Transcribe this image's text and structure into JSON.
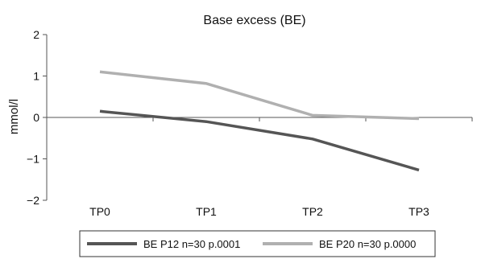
{
  "chart_data": {
    "type": "line",
    "title": "Base excess (BE)",
    "xlabel": "",
    "ylabel": "mmol/l",
    "categories": [
      "TP0",
      "TP1",
      "TP2",
      "TP3"
    ],
    "ylim": [
      -2,
      2
    ],
    "yticks": [
      "2",
      "1",
      "0",
      "−1",
      "−2"
    ],
    "ytick_values": [
      2,
      1,
      0,
      -1,
      -2
    ],
    "grid": false,
    "legend_position": "bottom",
    "series": [
      {
        "name": "BE P12 n=30 p.0001",
        "values": [
          0.15,
          -0.1,
          -0.52,
          -1.27
        ],
        "color": "#555555"
      },
      {
        "name": "BE P20 n=30 p.0000",
        "values": [
          1.1,
          0.82,
          0.05,
          -0.03
        ],
        "color": "#b0b0b0"
      }
    ]
  }
}
